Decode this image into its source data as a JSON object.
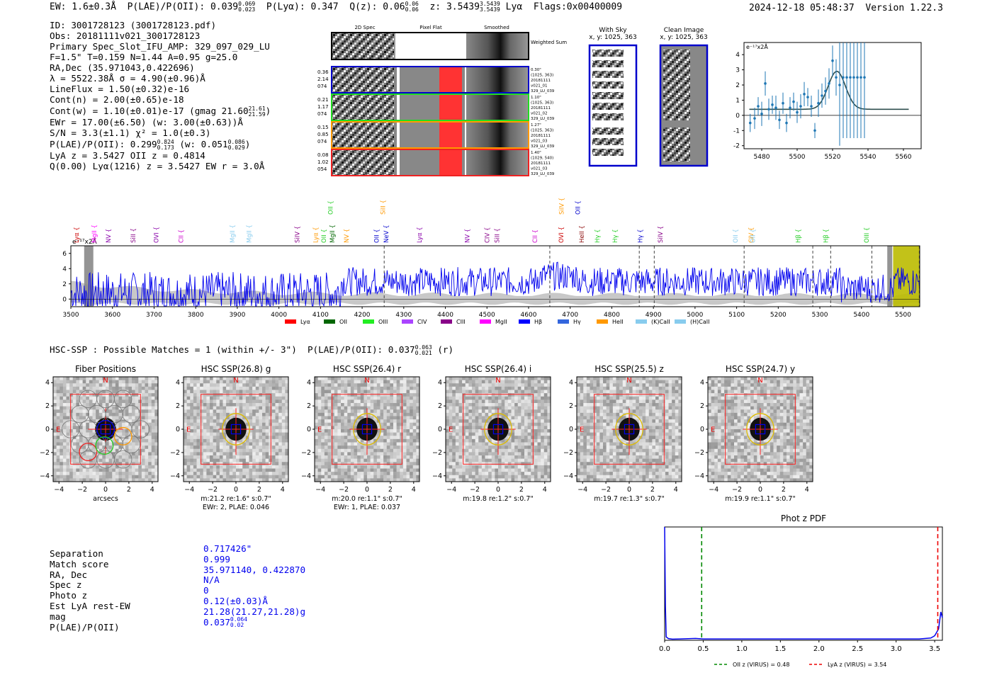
{
  "header": {
    "ew": "EW: 1.6±0.3Å",
    "plae_label": "P(LAE)/P(OII):",
    "plae_value": "0.039",
    "plae_sup": "0.069",
    "plae_sub": "0.023",
    "plya": "P(Lyα): 0.347",
    "qz_label": "Q(z):",
    "qz_value": "0.06",
    "qz_sup": "0.06",
    "qz_sub": "0.06",
    "z_label": "z:",
    "z_value": "3.5439",
    "z_sup": "3.5439",
    "z_sub": "3.5439",
    "z_line": "Lyα",
    "flags": "Flags:0x00400009",
    "timestamp": "2024-12-18 05:48:37",
    "version": "Version 1.22.3"
  },
  "info": [
    "ID: 3001728123 (3001728123.pdf)",
    "Obs: 20181111v021_3001728123",
    "Primary Spec_Slot_IFU_AMP: 329_097_029_LU",
    "F=1.5\"  T=0.159  N=1.44  A=0.95  g=25.0",
    "RA,Dec (35.971043,0.422696)",
    "λ = 5522.38Å  σ = 4.90(±0.96)Å",
    "LineFlux = 1.50(±0.32)e-16",
    "Cont(n) = 2.00(±0.65)e-18",
    "Cont(w) = 1.10(±0.01)e-17 (gmag 21.60",
    "EWr = 17.00(±6.50) (w: 3.00(±0.63))Å",
    "S/N = 3.3(±1.1)  χ² = 1.0(±0.3)",
    "P(LAE)/P(OII): 0.299",
    "LyA z = 3.5427  OII z = 0.4814",
    "Q(0.00) Lyα(1216) z = 3.5427  EW r = 3.0Å"
  ],
  "info_extras": {
    "gmag_sup": "21.61",
    "gmag_sub": "21.59",
    "plae_sup": "0.824",
    "plae_sub": "0.173",
    "plae_w": "(w: 0.051",
    "plae_w_sup": "0.086",
    "plae_w_sub": "0.029",
    "plae_w_close": ")"
  },
  "cutouts": {
    "col_2d": "2D Spec",
    "col_flat": "Pixel Flat",
    "col_smooth": "Smoothed",
    "weighted_sum": "Weighted Sum",
    "rows": [
      {
        "left": [
          "0.36",
          "2.14",
          "074"
        ],
        "right": [
          "0.30\"",
          "(1025, 363)",
          "20181111",
          "v021_01",
          "329_LU_039"
        ],
        "color": "#0000cc"
      },
      {
        "left": [
          "0.21",
          "1.17",
          "074"
        ],
        "right": [
          "1.10\"",
          "(1025, 363)",
          "20181111",
          "v021_02",
          "329_LU_039"
        ],
        "color": "#22dd22"
      },
      {
        "left": [
          "0.15",
          "0.85",
          "074"
        ],
        "right": [
          "1.27\"",
          "(1025, 363)",
          "20181111",
          "v021_03",
          "329_LU_039"
        ],
        "color": "#ff9900"
      },
      {
        "left": [
          "0.08",
          "1.02",
          "054"
        ],
        "right": [
          "1.40\"",
          "(1029, 540)",
          "20181111",
          "v021_03",
          "329_LU_039"
        ],
        "color": "#ee2222"
      }
    ]
  },
  "sky": {
    "with_sky": "With Sky",
    "with_sky_xy": "x, y: 1025, 363",
    "clean": "Clean Image",
    "clean_xy": "x, y: 1025, 363"
  },
  "zoom_chart": {
    "type": "scatter",
    "unit_label": "e⁻¹⁷x2Å",
    "xlim": [
      5470,
      5570
    ],
    "ylim": [
      -2.2,
      4.8
    ],
    "xticks": [
      "5480",
      "5500",
      "5520",
      "5540",
      "5560"
    ],
    "yticks": [
      "-2",
      "-1",
      "0",
      "1",
      "2",
      "3",
      "4"
    ],
    "points": [
      {
        "x": 5473.5,
        "y": -0.5,
        "e": 0.6
      },
      {
        "x": 5476,
        "y": -0.2,
        "e": 0.7
      },
      {
        "x": 5478,
        "y": 0.6,
        "e": 0.6
      },
      {
        "x": 5480,
        "y": 0.1,
        "e": 0.8
      },
      {
        "x": 5482,
        "y": 2.1,
        "e": 0.8
      },
      {
        "x": 5484,
        "y": 0.4,
        "e": 0.7
      },
      {
        "x": 5486,
        "y": 0.7,
        "e": 0.6
      },
      {
        "x": 5488,
        "y": 0.5,
        "e": 0.8
      },
      {
        "x": 5490,
        "y": -0.3,
        "e": 0.6
      },
      {
        "x": 5492,
        "y": 0.8,
        "e": 0.7
      },
      {
        "x": 5494,
        "y": -0.5,
        "e": 0.6
      },
      {
        "x": 5496,
        "y": 0.5,
        "e": 0.7
      },
      {
        "x": 5498,
        "y": 0.9,
        "e": 0.6
      },
      {
        "x": 5500,
        "y": 0.2,
        "e": 0.7
      },
      {
        "x": 5502,
        "y": 0.6,
        "e": 0.8
      },
      {
        "x": 5504,
        "y": 1.4,
        "e": 0.8
      },
      {
        "x": 5506,
        "y": 1.2,
        "e": 0.6
      },
      {
        "x": 5508,
        "y": 0.6,
        "e": 0.7
      },
      {
        "x": 5510,
        "y": -1.0,
        "e": 0.5
      },
      {
        "x": 5512,
        "y": 0.8,
        "e": 0.9
      },
      {
        "x": 5514,
        "y": 1.3,
        "e": 0.8
      },
      {
        "x": 5516,
        "y": 1.6,
        "e": 0.9
      },
      {
        "x": 5518,
        "y": 2.1,
        "e": 1.0
      },
      {
        "x": 5520,
        "y": 3.6,
        "e": 1.0
      },
      {
        "x": 5522,
        "y": 2.5,
        "e": 1.2
      },
      {
        "x": 5524,
        "y": 2.0,
        "e": 4.0
      },
      {
        "x": 5526,
        "y": 2.5,
        "e": 4.0
      },
      {
        "x": 5528,
        "y": 2.5,
        "e": 4.0
      },
      {
        "x": 5530,
        "y": 2.5,
        "e": 4.0
      },
      {
        "x": 5532,
        "y": 2.5,
        "e": 4.0
      },
      {
        "x": 5534,
        "y": 2.5,
        "e": 4.0
      },
      {
        "x": 5536,
        "y": 2.5,
        "e": 4.0
      },
      {
        "x": 5538,
        "y": 2.5,
        "e": 4.0
      }
    ],
    "fit": {
      "continuum": 0.4,
      "amplitude": 2.5,
      "center": 5522.38,
      "sigma": 4.9,
      "x_end": 5563
    }
  },
  "full_spectrum": {
    "type": "line",
    "unit_label": "e⁻¹⁷x2Å",
    "xlim": [
      3500,
      5540
    ],
    "ylim": [
      -1,
      7
    ],
    "xticks": [
      "3500",
      "3600",
      "3700",
      "3800",
      "3900",
      "4000",
      "4100",
      "4200",
      "4300",
      "4400",
      "4500",
      "4600",
      "4700",
      "4800",
      "4900",
      "5000",
      "5100",
      "5200",
      "5300",
      "5400",
      "5500"
    ],
    "yticks": [
      "0",
      "2",
      "4",
      "6"
    ],
    "line_labels": [
      {
        "name": "Lyα",
        "x": 3514,
        "tier": 0,
        "color": "#cc0000"
      },
      {
        "name": "MgII",
        "x": 3556,
        "tier": 0,
        "color": "#ff00ff"
      },
      {
        "name": "NV",
        "x": 3590,
        "tier": 0,
        "color": "#8800aa"
      },
      {
        "name": "SiII",
        "x": 3650,
        "tier": 0,
        "color": "#880088"
      },
      {
        "name": "OVI",
        "x": 3705,
        "tier": 0,
        "color": "#8800aa"
      },
      {
        "name": "CII",
        "x": 3765,
        "tier": 0,
        "color": "#cc00cc"
      },
      {
        "name": "MgII",
        "x": 3888,
        "tier": 0,
        "color": "#88ccee"
      },
      {
        "name": "MgII",
        "x": 3928,
        "tier": 0,
        "color": "#88ccee"
      },
      {
        "name": "SiIV",
        "x": 4044,
        "tier": 0,
        "color": "#880088"
      },
      {
        "name": "Lyα",
        "x": 4088,
        "tier": 0,
        "color": "#ff9900"
      },
      {
        "name": "OII",
        "x": 4108,
        "tier": 0,
        "color": "#22cc22"
      },
      {
        "name": "MgII",
        "x": 4128,
        "tier": 0,
        "color": "#006600"
      },
      {
        "name": "NV",
        "x": 4162,
        "tier": 0,
        "color": "#ff9900"
      },
      {
        "name": "OII",
        "x": 4124,
        "tier": 2,
        "color": "#22cc22"
      },
      {
        "name": "OII",
        "x": 4235,
        "tier": 0,
        "color": "#0000cc"
      },
      {
        "name": "NeV",
        "x": 4258,
        "tier": 0,
        "color": "#0000cc"
      },
      {
        "name": "SiII",
        "x": 4250,
        "tier": 2,
        "color": "#ff9900"
      },
      {
        "name": "Lyα",
        "x": 4338,
        "tier": 0,
        "color": "#8800aa"
      },
      {
        "name": "NV",
        "x": 4453,
        "tier": 0,
        "color": "#8800aa"
      },
      {
        "name": "CIV",
        "x": 4500,
        "tier": 0,
        "color": "#880088"
      },
      {
        "name": "SiII",
        "x": 4524,
        "tier": 0,
        "color": "#880088"
      },
      {
        "name": "CII",
        "x": 4615,
        "tier": 0,
        "color": "#cc00cc"
      },
      {
        "name": "OVI",
        "x": 4678,
        "tier": 0,
        "color": "#cc0000"
      },
      {
        "name": "SiIV",
        "x": 4679,
        "tier": 2,
        "color": "#ff9900"
      },
      {
        "name": "OII",
        "x": 4718,
        "tier": 2,
        "color": "#0000cc"
      },
      {
        "name": "HeII",
        "x": 4728,
        "tier": 0,
        "color": "#880000"
      },
      {
        "name": "Hγ",
        "x": 4765,
        "tier": 0,
        "color": "#22cc22"
      },
      {
        "name": "Hγ",
        "x": 4808,
        "tier": 0,
        "color": "#22cc22"
      },
      {
        "name": "Hγ",
        "x": 4868,
        "tier": 0,
        "color": "#0000cc"
      },
      {
        "name": "SiIV",
        "x": 4917,
        "tier": 0,
        "color": "#880088"
      },
      {
        "name": "OII",
        "x": 5097,
        "tier": 0,
        "color": "#88ccee"
      },
      {
        "name": "CIV",
        "x": 5135,
        "tier": 0,
        "color": "#ff9900"
      },
      {
        "name": "OII",
        "x": 5139,
        "tier": 0,
        "color": "#88ccee"
      },
      {
        "name": "Hβ",
        "x": 5248,
        "tier": 0,
        "color": "#22cc22"
      },
      {
        "name": "Hβ",
        "x": 5314,
        "tier": 0,
        "color": "#22cc22"
      },
      {
        "name": "OIII",
        "x": 5412,
        "tier": 0,
        "color": "#22cc22"
      }
    ],
    "dashed_lines": [
      4253,
      4651,
      4866,
      4902,
      5118,
      5283,
      5326,
      5425,
      5539
    ],
    "shaded_regions": [
      {
        "x0": 3532,
        "x1": 3554,
        "color": "#888888"
      },
      {
        "x0": 5462,
        "x1": 5474,
        "color": "#888888"
      },
      {
        "x0": 5476,
        "x1": 5540,
        "color": "#bbbb00"
      }
    ],
    "legend": [
      "Lyα",
      "OII",
      "OIII",
      "CIV",
      "CIII",
      "MgII",
      "Hβ",
      "Hγ",
      "HeII",
      "(K)CaII",
      "(H)CaII"
    ],
    "legend_colors": [
      "#ff0000",
      "#006600",
      "#22ee22",
      "#aa44ff",
      "#880088",
      "#ff00ff",
      "#0000ff",
      "#3366dd",
      "#ff9900",
      "#88ccee",
      "#88ccee"
    ]
  },
  "hsc": {
    "title": "HSC-SSP : Possible Matches = 1 (within +/- 3\")",
    "plae_label": "P(LAE)/P(OII):",
    "plae_value": "0.037",
    "plae_sup": "0.063",
    "plae_sub": "0.021",
    "plae_band": "(r)",
    "panels": [
      {
        "title": "Fiber Positions",
        "caption1": "arcsecs",
        "caption2": ""
      },
      {
        "title": "HSC SSP(26.8) g",
        "caption1": "m:21.2  re:1.6\"  s:0.7\"",
        "caption2": "EWr: 2, PLAE: 0.046"
      },
      {
        "title": "HSC SSP(26.4) r",
        "caption1": "m:20.0  re:1.1\"  s:0.7\"",
        "caption2": "EWr: 1, PLAE: 0.037"
      },
      {
        "title": "HSC SSP(26.4) i",
        "caption1": "m:19.8  re:1.2\"  s:0.7\"",
        "caption2": ""
      },
      {
        "title": "HSC SSP(25.5) z",
        "caption1": "m:19.7  re:1.3\"  s:0.7\"",
        "caption2": ""
      },
      {
        "title": "HSC SSP(24.7) y",
        "caption1": "m:19.9  re:1.1\"  s:0.7\"",
        "caption2": ""
      }
    ],
    "axis_ticks": [
      "4",
      "2",
      "0",
      "−2",
      "−4"
    ],
    "x_ticks": [
      "−4",
      "−2",
      "0",
      "2",
      "4"
    ],
    "n_label": "N",
    "e_label": "E"
  },
  "match": {
    "labels": [
      "Separation",
      "Match score",
      "RA, Dec",
      "Spec z",
      "Photo z",
      "Est LyA rest-EW",
      "mag",
      "P(LAE)/P(OII)"
    ],
    "values": [
      "0.717426\"",
      "0.999",
      "35.971140, 0.422870",
      "N/A",
      "0",
      "0.12(±0.03)Å",
      "21.28(21.27,21.28)g",
      "0.037"
    ],
    "plae_sup": "0.064",
    "plae_sub": "0.02"
  },
  "pdf_chart": {
    "type": "line",
    "title": "Phot z PDF",
    "xlim": [
      0,
      3.6
    ],
    "xticks": [
      "0.0",
      "0.5",
      "1.0",
      "1.5",
      "2.0",
      "2.5",
      "3.0",
      "3.5"
    ],
    "x": [
      0.0,
      0.01,
      0.02,
      0.05,
      0.1,
      0.2,
      0.4,
      0.5,
      0.8,
      1.0,
      1.5,
      2.0,
      2.5,
      3.0,
      3.3,
      3.45,
      3.5,
      3.55,
      3.58,
      3.6
    ],
    "y": [
      1.0,
      0.3,
      0.03,
      0.015,
      0.01,
      0.012,
      0.016,
      0.012,
      0.012,
      0.012,
      0.012,
      0.012,
      0.012,
      0.012,
      0.012,
      0.02,
      0.04,
      0.1,
      0.25,
      0.2
    ],
    "oii_z": 0.48,
    "lya_z": 3.54,
    "legend_oii": "OII z (VIRUS) = 0.48",
    "legend_lya": "LyA z (VIRUS) = 3.54"
  }
}
